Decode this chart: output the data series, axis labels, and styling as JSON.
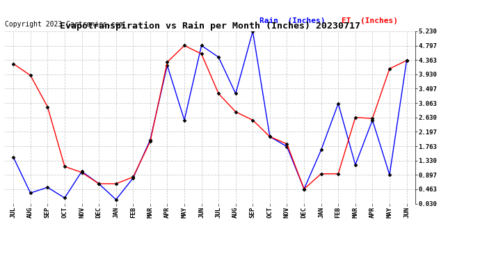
{
  "title": "Evapotranspiration vs Rain per Month (Inches) 20230717",
  "copyright": "Copyright 2023 Cartronics.com",
  "legend_rain": "Rain  (Inches)",
  "legend_et": "ET  (Inches)",
  "months": [
    "JUL",
    "AUG",
    "SEP",
    "OCT",
    "NOV",
    "DEC",
    "JAN",
    "FEB",
    "MAR",
    "APR",
    "MAY",
    "JUN",
    "JUL",
    "AUG",
    "SEP",
    "OCT",
    "NOV",
    "DEC",
    "JAN",
    "FEB",
    "MAR",
    "APR",
    "MAY",
    "JUN"
  ],
  "rain": [
    1.43,
    0.35,
    0.52,
    0.2,
    1.0,
    0.63,
    0.15,
    0.8,
    1.95,
    4.2,
    2.55,
    4.8,
    4.45,
    3.35,
    5.23,
    2.05,
    1.75,
    0.47,
    1.65,
    3.05,
    1.2,
    2.55,
    0.9,
    4.35
  ],
  "et": [
    4.25,
    3.9,
    2.95,
    1.15,
    0.97,
    0.63,
    0.63,
    0.83,
    1.9,
    4.3,
    4.8,
    4.55,
    3.35,
    2.8,
    2.55,
    2.05,
    1.83,
    0.47,
    0.93,
    0.93,
    2.63,
    2.6,
    4.1,
    4.35
  ],
  "rain_color": "#0000ff",
  "et_color": "#ff0000",
  "bg_color": "#ffffff",
  "grid_color": "#cccccc",
  "ymin": 0.03,
  "ymax": 5.23,
  "yticks": [
    0.03,
    0.463,
    0.897,
    1.33,
    1.763,
    2.197,
    2.63,
    3.063,
    3.497,
    3.93,
    4.363,
    4.797,
    5.23
  ],
  "title_fontsize": 9.5,
  "axis_fontsize": 6.5,
  "legend_fontsize": 8,
  "copyright_fontsize": 7
}
